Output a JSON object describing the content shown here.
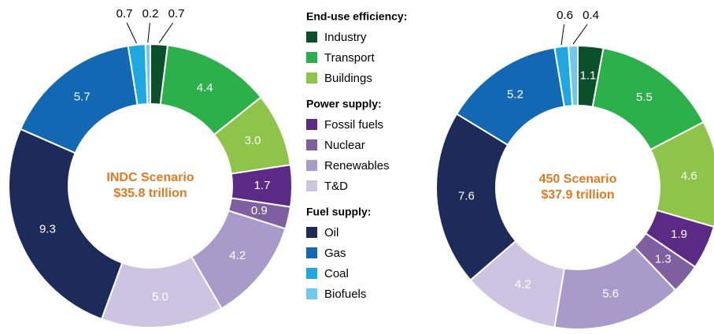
{
  "chart_data": [
    {
      "type": "donut",
      "center_label": [
        "INDC Scenario",
        "$35.8 trillion"
      ],
      "values": [
        0.7,
        4.4,
        3.0,
        1.7,
        0.9,
        4.2,
        5.0,
        9.3,
        5.7,
        0.7,
        0.2
      ],
      "value_labels": [
        "0.7",
        "4.4",
        "3.0",
        "1.7",
        "0.9",
        "4.2",
        "5.0",
        "9.3",
        "5.7",
        "0.7",
        "0.2"
      ]
    },
    {
      "type": "donut",
      "center_label": [
        "450 Scenario",
        "$37.9 trillion"
      ],
      "values": [
        1.1,
        5.5,
        4.6,
        1.9,
        1.3,
        5.6,
        4.2,
        7.6,
        5.2,
        0.6,
        0.4
      ],
      "value_labels": [
        "1.1",
        "5.5",
        "4.6",
        "1.9",
        "1.3",
        "5.6",
        "4.2",
        "7.6",
        "5.2",
        "0.6",
        "0.4"
      ]
    }
  ],
  "legend": [
    {
      "title": "End-use efficiency:",
      "items": [
        {
          "name": "Industry",
          "color": "#0c4f2b"
        },
        {
          "name": "Transport",
          "color": "#2bb04a"
        },
        {
          "name": "Buildings",
          "color": "#8dc449"
        }
      ]
    },
    {
      "title": "Power supply:",
      "items": [
        {
          "name": "Fossil fuels",
          "color": "#5b2a86"
        },
        {
          "name": "Nuclear",
          "color": "#7e5f9f"
        },
        {
          "name": "Renewables",
          "color": "#a99bc9"
        },
        {
          "name": "T&D",
          "color": "#ccc4e0"
        }
      ]
    },
    {
      "title": "Fuel supply:",
      "items": [
        {
          "name": "Oil",
          "color": "#1d2b5a"
        },
        {
          "name": "Gas",
          "color": "#1268b3"
        },
        {
          "name": "Coal",
          "color": "#1ea7e1"
        },
        {
          "name": "Biofuels",
          "color": "#70c8ef"
        }
      ]
    }
  ]
}
